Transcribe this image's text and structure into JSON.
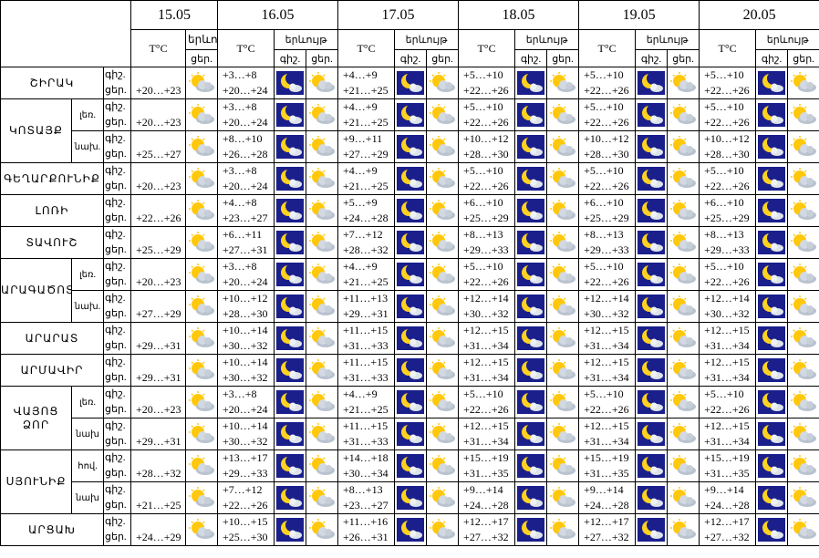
{
  "header": {
    "dates": [
      "15.05",
      "16.05",
      "17.05",
      "18.05",
      "19.05",
      "20.05"
    ],
    "temp_label": "T°C",
    "phenomenon_label": "երևույթ",
    "night": "գիշ.",
    "day": "ցեր."
  },
  "regions": [
    {
      "name": "ՇԻՐԱԿ",
      "zones": [
        {
          "first_day": "+20…+23",
          "days": [
            [
              "+3…+8",
              "+20…+24"
            ],
            [
              "+4…+9",
              "+21…+25"
            ],
            [
              "+5…+10",
              "+22…+26"
            ],
            [
              "+5…+10",
              "+22…+26"
            ],
            [
              "+5…+10",
              "+22…+26"
            ]
          ]
        }
      ]
    },
    {
      "name": "ԿՈՏԱՅՔ",
      "zones": [
        {
          "zone": "լեռ.",
          "first_day": "+20…+23",
          "days": [
            [
              "+3…+8",
              "+20…+24"
            ],
            [
              "+4…+9",
              "+21…+25"
            ],
            [
              "+5…+10",
              "+22…+26"
            ],
            [
              "+5…+10",
              "+22…+26"
            ],
            [
              "+5…+10",
              "+22…+26"
            ]
          ]
        },
        {
          "zone": "նախ.",
          "first_day": "+25…+27",
          "days": [
            [
              "+8…+10",
              "+26…+28"
            ],
            [
              "+9…+11",
              "+27…+29"
            ],
            [
              "+10…+12",
              "+28…+30"
            ],
            [
              "+10…+12",
              "+28…+30"
            ],
            [
              "+10…+12",
              "+28…+30"
            ]
          ]
        }
      ]
    },
    {
      "name": "ԳԵՂԱՐՔՈՒՆԻՔ",
      "zones": [
        {
          "first_day": "+20…+23",
          "days": [
            [
              "+3…+8",
              "+20…+24"
            ],
            [
              "+4…+9",
              "+21…+25"
            ],
            [
              "+5…+10",
              "+22…+26"
            ],
            [
              "+5…+10",
              "+22…+26"
            ],
            [
              "+5…+10",
              "+22…+26"
            ]
          ]
        }
      ]
    },
    {
      "name": "ԼՈՌԻ",
      "zones": [
        {
          "first_day": "+22…+26",
          "days": [
            [
              "+4…+8",
              "+23…+27"
            ],
            [
              "+5…+9",
              "+24…+28"
            ],
            [
              "+6…+10",
              "+25…+29"
            ],
            [
              "+6…+10",
              "+25…+29"
            ],
            [
              "+6…+10",
              "+25…+29"
            ]
          ]
        }
      ]
    },
    {
      "name": "ՏԱՎՈՒՇ",
      "zones": [
        {
          "first_day": "+25…+29",
          "days": [
            [
              "+6…+11",
              "+27…+31"
            ],
            [
              "+7…+12",
              "+28…+32"
            ],
            [
              "+8…+13",
              "+29…+33"
            ],
            [
              "+8…+13",
              "+29…+33"
            ],
            [
              "+8…+13",
              "+29…+33"
            ]
          ]
        }
      ]
    },
    {
      "name": "ԱՐԱԳԱԾՈՏՆ",
      "zones": [
        {
          "zone": "լեռ.",
          "first_day": "+20…+23",
          "days": [
            [
              "+3…+8",
              "+20…+24"
            ],
            [
              "+4…+9",
              "+21…+25"
            ],
            [
              "+5…+10",
              "+22…+26"
            ],
            [
              "+5…+10",
              "+22…+26"
            ],
            [
              "+5…+10",
              "+22…+26"
            ]
          ]
        },
        {
          "zone": "նախ.",
          "first_day": "+27…+29",
          "days": [
            [
              "+10…+12",
              "+28…+30"
            ],
            [
              "+11…+13",
              "+29…+31"
            ],
            [
              "+12…+14",
              "+30…+32"
            ],
            [
              "+12…+14",
              "+30…+32"
            ],
            [
              "+12…+14",
              "+30…+32"
            ]
          ]
        }
      ]
    },
    {
      "name": "ԱՐԱՐԱՏ",
      "zones": [
        {
          "first_day": "+29…+31",
          "days": [
            [
              "+10…+14",
              "+30…+32"
            ],
            [
              "+11…+15",
              "+31…+33"
            ],
            [
              "+12…+15",
              "+31…+34"
            ],
            [
              "+12…+15",
              "+31…+34"
            ],
            [
              "+12…+15",
              "+31…+34"
            ]
          ]
        }
      ]
    },
    {
      "name": "ԱՐՄԱՎԻՐ",
      "zones": [
        {
          "first_day": "+29…+31",
          "days": [
            [
              "+10…+14",
              "+30…+32"
            ],
            [
              "+11…+15",
              "+31…+33"
            ],
            [
              "+12…+15",
              "+31…+34"
            ],
            [
              "+12…+15",
              "+31…+34"
            ],
            [
              "+12…+15",
              "+31…+34"
            ]
          ]
        }
      ]
    },
    {
      "name": "ՎԱՅՈՑ ՁՈՐ",
      "zones": [
        {
          "zone": "լեռ.",
          "first_day": "+20…+23",
          "days": [
            [
              "+3…+8",
              "+20…+24"
            ],
            [
              "+4…+9",
              "+21…+25"
            ],
            [
              "+5…+10",
              "+22…+26"
            ],
            [
              "+5…+10",
              "+22…+26"
            ],
            [
              "+5…+10",
              "+22…+26"
            ]
          ]
        },
        {
          "zone": "նախ",
          "first_day": "+29…+31",
          "days": [
            [
              "+10…+14",
              "+30…+32"
            ],
            [
              "+11…+15",
              "+31…+33"
            ],
            [
              "+12…+15",
              "+31…+34"
            ],
            [
              "+12…+15",
              "+31…+34"
            ],
            [
              "+12…+15",
              "+31…+34"
            ]
          ]
        }
      ]
    },
    {
      "name": "ՍՅՈՒՆԻՔ",
      "zones": [
        {
          "zone": "հով.",
          "first_day": "+28…+32",
          "days": [
            [
              "+13…+17",
              "+29…+33"
            ],
            [
              "+14…+18",
              "+30…+34"
            ],
            [
              "+15…+19",
              "+31…+35"
            ],
            [
              "+15…+19",
              "+31…+35"
            ],
            [
              "+15…+19",
              "+31…+35"
            ]
          ]
        },
        {
          "zone": "նախ",
          "first_day": "+21…+25",
          "days": [
            [
              "+7…+12",
              "+22…+26"
            ],
            [
              "+8…+13",
              "+23…+27"
            ],
            [
              "+9…+14",
              "+24…+28"
            ],
            [
              "+9…+14",
              "+24…+28"
            ],
            [
              "+9…+14",
              "+24…+28"
            ]
          ]
        }
      ]
    },
    {
      "name": "ԱՐՑԱԽ",
      "zones": [
        {
          "first_day": "+24…+29",
          "days": [
            [
              "+10…+15",
              "+25…+30"
            ],
            [
              "+11…+16",
              "+26…+31"
            ],
            [
              "+12…+17",
              "+27…+32"
            ],
            [
              "+12…+17",
              "+27…+32"
            ],
            [
              "+12…+17",
              "+27…+32"
            ]
          ]
        }
      ]
    }
  ]
}
